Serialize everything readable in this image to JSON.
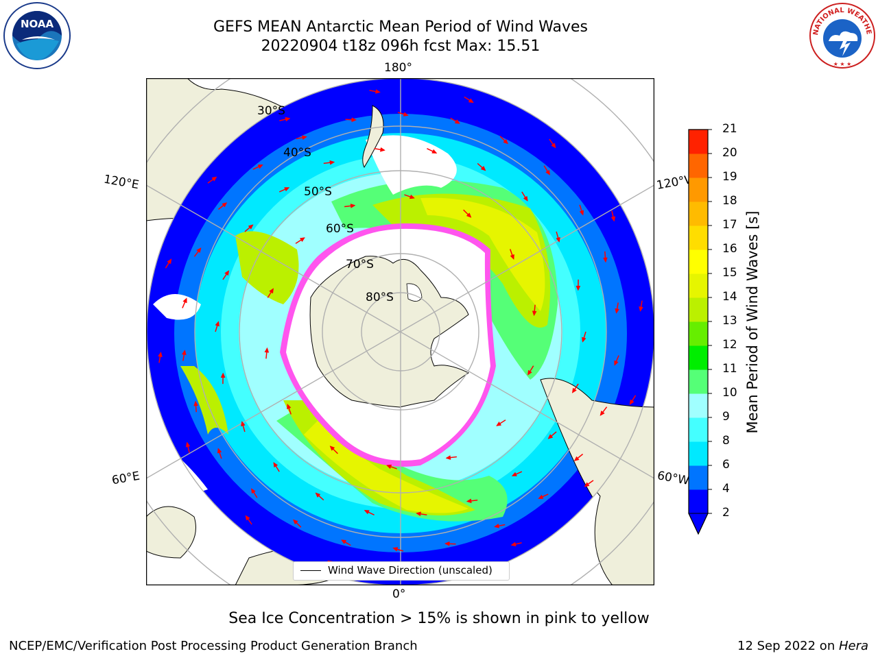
{
  "header": {
    "title_line1": "GEFS MEAN Antarctic Mean Period of Wind Waves",
    "title_line2": "20220904 t18z 096h fcst   Max: 15.51"
  },
  "map": {
    "projection": "south polar stereographic",
    "longitude_labels": {
      "top": "180°",
      "bottom": "0°",
      "left_upper": "120°E",
      "right_upper": "120°W",
      "left_lower": "60°E",
      "right_lower": "60°W"
    },
    "latitude_labels": [
      "30°S",
      "40°S",
      "50°S",
      "60°S",
      "70°S",
      "80°S"
    ],
    "legend_label": "Wind Wave Direction (unscaled)",
    "arrow_color": "#ff0000"
  },
  "colorbar": {
    "label": "Mean Period of Wind Waves [s]",
    "ticks": [
      "2",
      "4",
      "6",
      "8",
      "9",
      "10",
      "11",
      "12",
      "13",
      "14",
      "15",
      "16",
      "17",
      "18",
      "19",
      "20",
      "21"
    ],
    "colors": [
      "#0000ff",
      "#0075ff",
      "#00e9ff",
      "#44ffff",
      "#a0ffff",
      "#55ff77",
      "#00ee00",
      "#66ee00",
      "#bbf000",
      "#e6f500",
      "#ffff00",
      "#ffdd00",
      "#ffbb00",
      "#ff9900",
      "#ff6600",
      "#ff2200"
    ],
    "extend_color": "#0000ff"
  },
  "footer": {
    "note": "Sea Ice Concentration > 15% is shown in pink to yellow",
    "left": "NCEP/EMC/Verification Post Processing Product Generation Branch",
    "date": "12 Sep 2022 on ",
    "host": "Hera"
  },
  "logos": {
    "noaa_text": "NOAA",
    "nws_text": "NATIONAL WEATHER SERVICE"
  }
}
